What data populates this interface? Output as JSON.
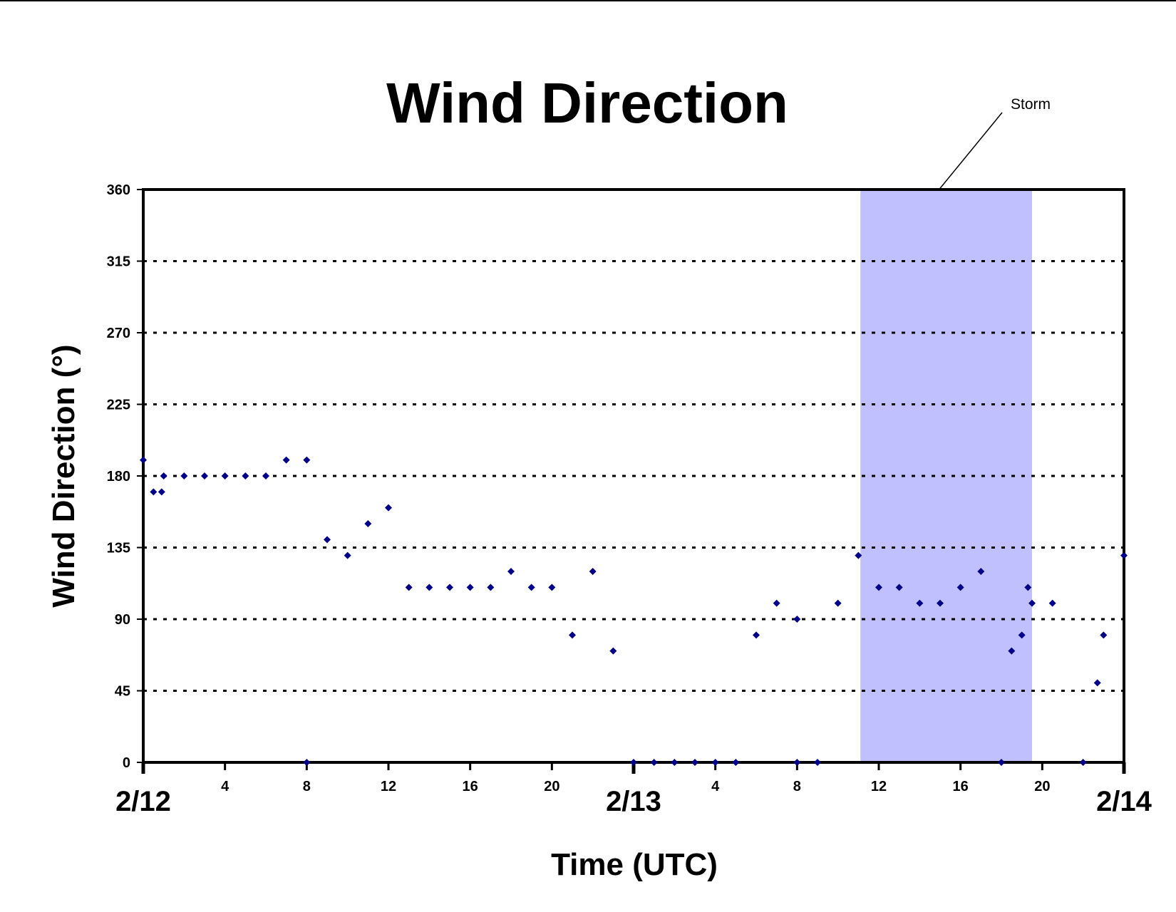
{
  "chart_data": {
    "type": "scatter",
    "title": "Wind Direction",
    "xlabel": "Time (UTC)",
    "ylabel": "Wind Direction (°)",
    "x_unit": "hours from 2/12 00 UTC",
    "xlim": [
      0,
      48
    ],
    "ylim": [
      0,
      360
    ],
    "y_ticks": [
      "0",
      "45",
      "90",
      "135",
      "180",
      "225",
      "270",
      "315",
      "360"
    ],
    "grid": "horizontal dotted",
    "x_hour_ticks": [
      {
        "x": 4,
        "label": "4"
      },
      {
        "x": 8,
        "label": "8"
      },
      {
        "x": 12,
        "label": "12"
      },
      {
        "x": 16,
        "label": "16"
      },
      {
        "x": 20,
        "label": "20"
      },
      {
        "x": 28,
        "label": "4"
      },
      {
        "x": 32,
        "label": "8"
      },
      {
        "x": 36,
        "label": "12"
      },
      {
        "x": 40,
        "label": "16"
      },
      {
        "x": 44,
        "label": "20"
      }
    ],
    "x_date_labels": [
      {
        "x": 0,
        "label": "2/12"
      },
      {
        "x": 24,
        "label": "2/13"
      },
      {
        "x": 48,
        "label": "2/14"
      }
    ],
    "marker_color": "#00008b",
    "shade": {
      "x0": 35.1,
      "x1": 43.5,
      "color": "#c0c0ff",
      "label": "Storm"
    },
    "series": [
      {
        "points": [
          [
            0.0,
            190
          ],
          [
            0.5,
            170
          ],
          [
            0.9,
            170
          ],
          [
            1.0,
            180
          ],
          [
            2.0,
            180
          ],
          [
            3.0,
            180
          ],
          [
            4.0,
            180
          ],
          [
            5.0,
            180
          ],
          [
            6.0,
            180
          ],
          [
            7.0,
            190
          ],
          [
            8.0,
            190
          ],
          [
            8.0,
            0
          ],
          [
            9.0,
            140
          ],
          [
            10.0,
            130
          ],
          [
            11.0,
            150
          ],
          [
            12.0,
            160
          ],
          [
            13.0,
            110
          ],
          [
            14.0,
            110
          ],
          [
            15.0,
            110
          ],
          [
            16.0,
            110
          ],
          [
            17.0,
            110
          ],
          [
            18.0,
            120
          ],
          [
            19.0,
            110
          ],
          [
            20.0,
            110
          ],
          [
            21.0,
            80
          ],
          [
            22.0,
            120
          ],
          [
            23.0,
            70
          ],
          [
            24.0,
            0
          ],
          [
            25.0,
            0
          ],
          [
            26.0,
            0
          ],
          [
            27.0,
            0
          ],
          [
            28.0,
            0
          ],
          [
            29.0,
            0
          ],
          [
            30.0,
            80
          ],
          [
            31.0,
            100
          ],
          [
            32.0,
            90
          ],
          [
            32.0,
            0
          ],
          [
            33.0,
            0
          ],
          [
            34.0,
            100
          ],
          [
            35.0,
            130
          ],
          [
            36.0,
            110
          ],
          [
            37.0,
            110
          ],
          [
            38.0,
            100
          ],
          [
            39.0,
            100
          ],
          [
            40.0,
            110
          ],
          [
            41.0,
            120
          ],
          [
            42.0,
            0
          ],
          [
            42.5,
            70
          ],
          [
            43.0,
            80
          ],
          [
            43.3,
            110
          ],
          [
            43.5,
            100
          ],
          [
            44.5,
            100
          ],
          [
            46.0,
            0
          ],
          [
            46.7,
            50
          ],
          [
            47.0,
            80
          ],
          [
            48.0,
            130
          ]
        ]
      }
    ]
  }
}
